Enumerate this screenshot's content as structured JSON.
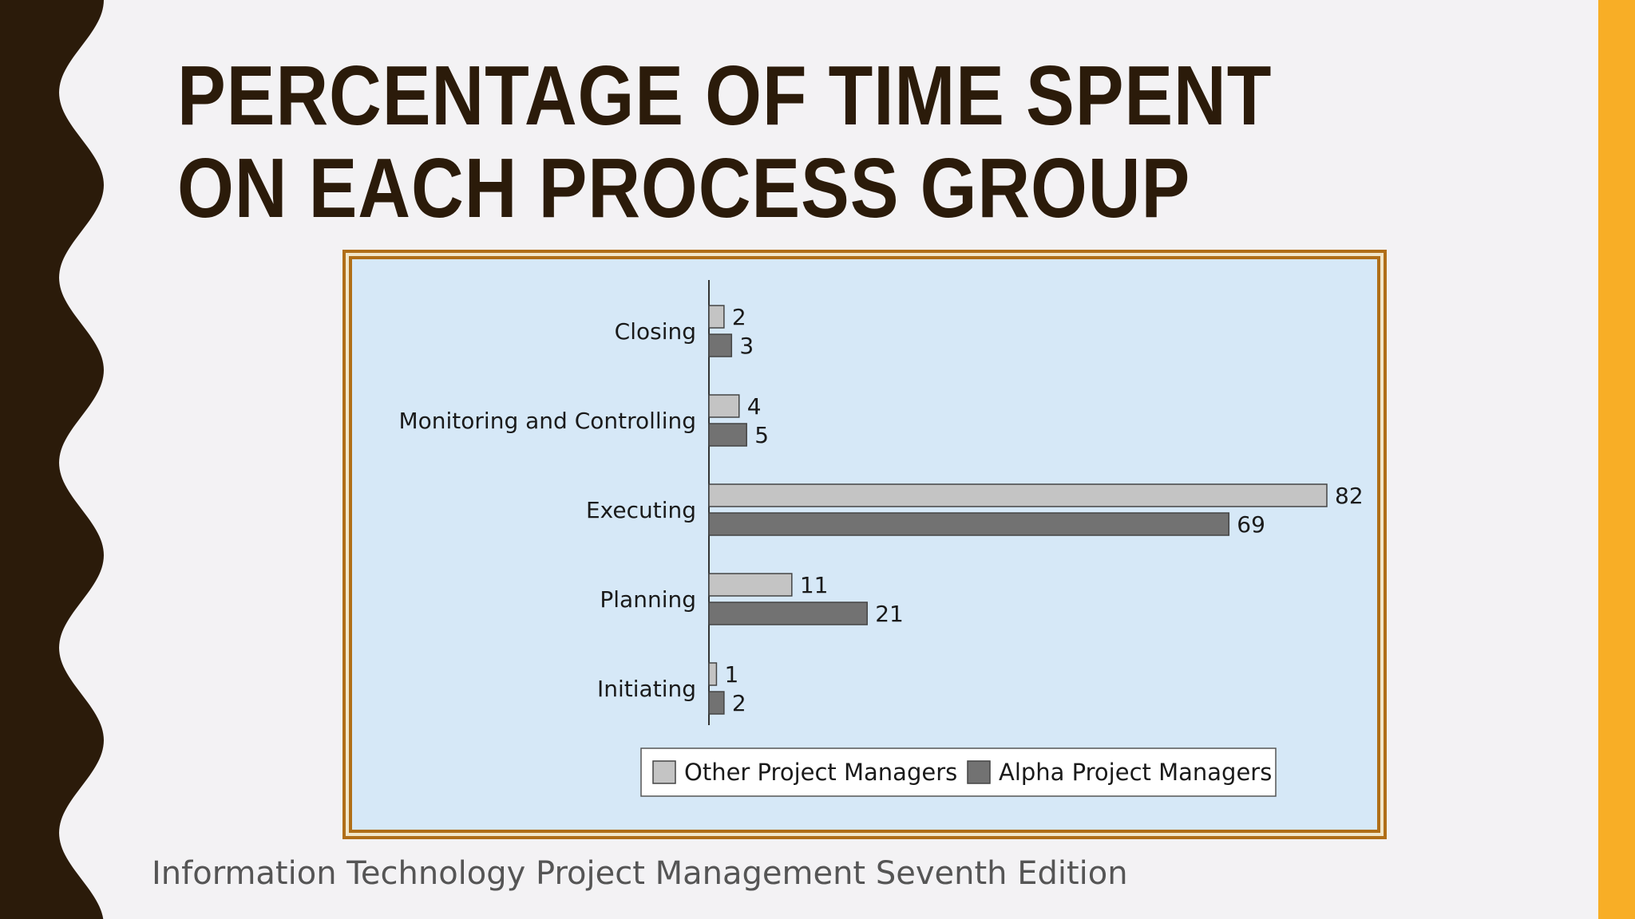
{
  "slide": {
    "title": "Percentage of Time Spent on Each Process Group",
    "footer": "Information Technology Project Management Seventh Edition"
  },
  "colors": {
    "left_band": "#2b1b0a",
    "right_bar": "#f8ae26",
    "frame": "#b06e17",
    "chart_bg": "#d6e8f7",
    "series_other": "#c4c4c4",
    "series_alpha": "#727272"
  },
  "chart_data": {
    "type": "bar",
    "orientation": "horizontal",
    "categories": [
      "Closing",
      "Monitoring and Controlling",
      "Executing",
      "Planning",
      "Initiating"
    ],
    "series": [
      {
        "name": "Other Project Managers",
        "values": [
          2,
          4,
          82,
          11,
          1
        ]
      },
      {
        "name": "Alpha Project Managers",
        "values": [
          3,
          5,
          69,
          21,
          2
        ]
      }
    ],
    "title": "",
    "xlabel": "",
    "ylabel": "",
    "xlim": [
      0,
      82
    ],
    "grid": false,
    "legend": "bottom"
  }
}
